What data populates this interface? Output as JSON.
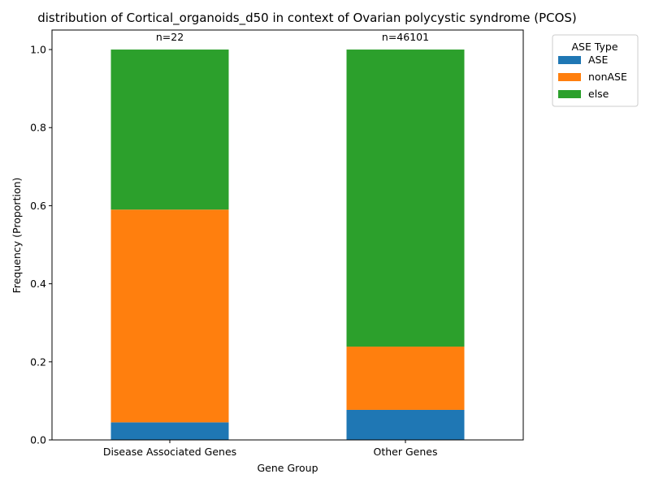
{
  "chart_data": {
    "type": "bar",
    "stacked": true,
    "title": "distribution of Cortical_organoids_d50 in context of Ovarian polycystic syndrome (PCOS)",
    "xlabel": "Gene Group",
    "ylabel": "Frequency (Proportion)",
    "categories": [
      "Disease Associated Genes",
      "Other Genes"
    ],
    "counts": [
      "n=22",
      "n=46101"
    ],
    "ylim": [
      0,
      1.05
    ],
    "yticks": [
      "0.0",
      "0.2",
      "0.4",
      "0.6",
      "0.8",
      "1.0"
    ],
    "series": [
      {
        "name": "ASE",
        "color": "#1f77b4",
        "values": [
          0.045,
          0.077
        ]
      },
      {
        "name": "nonASE",
        "color": "#ff7f0e",
        "values": [
          0.545,
          0.162
        ]
      },
      {
        "name": "else",
        "color": "#2ca02c",
        "values": [
          0.41,
          0.761
        ]
      }
    ],
    "legend": {
      "title": "ASE Type",
      "position": "outside-top-right"
    },
    "grid": false
  }
}
